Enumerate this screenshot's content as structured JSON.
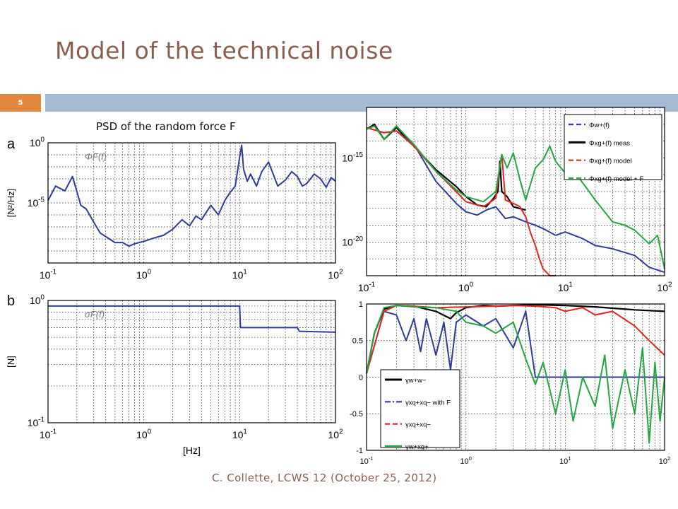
{
  "slide": {
    "title": "Model of the technical noise",
    "number": "5",
    "psd_label": "PSD of the random force F",
    "footer": "C. Collette, LCWS 12 (October 25, 2012)"
  },
  "colors": {
    "title": "#8a5e4e",
    "accent_orange": "#e2873d",
    "accent_blue": "#a3bcd4",
    "blue": "#2e3b9c",
    "black": "#000000",
    "red": "#e8231f",
    "green": "#22a640"
  },
  "chart_data": [
    {
      "id": "a",
      "type": "line",
      "panel_label": "a",
      "ylabel": "[N²/Hz]",
      "annotation": "ΦF(f)",
      "xscale": "log",
      "yscale": "log",
      "xlim": [
        0.1,
        100
      ],
      "ylim": [
        1e-10,
        1
      ],
      "xticks": [
        "10-1",
        "100",
        "101",
        "102"
      ],
      "yticks": [
        "100",
        "10-5"
      ],
      "grid": true,
      "series": [
        {
          "color": "blue",
          "x": [
            0.1,
            0.12,
            0.15,
            0.18,
            0.22,
            0.25,
            0.3,
            0.35,
            0.4,
            0.5,
            0.6,
            0.7,
            0.8,
            1,
            1.3,
            1.6,
            2,
            2.5,
            3,
            3.5,
            4,
            5,
            6,
            7,
            8,
            9,
            10,
            10.5,
            11,
            12,
            13,
            15,
            17,
            20,
            25,
            30,
            35,
            40,
            45,
            50,
            60,
            70,
            80,
            90,
            100
          ],
          "y": [
            -4.8,
            -3.6,
            -4.0,
            -2.8,
            -5.2,
            -5.5,
            -6.6,
            -7.5,
            -7.8,
            -8.3,
            -8.3,
            -8.6,
            -8.4,
            -8.2,
            -7.9,
            -7.7,
            -7.2,
            -6.4,
            -6.9,
            -6.1,
            -6.4,
            -5.2,
            -6.0,
            -4.8,
            -4.1,
            -3.6,
            -1.2,
            -0.2,
            -2.2,
            -3.2,
            -2.6,
            -3.6,
            -2.4,
            -1.6,
            -3.6,
            -3.1,
            -2.4,
            -2.8,
            -3.6,
            -3.4,
            -2.6,
            -3.0,
            -3.7,
            -2.9,
            -3.2
          ]
        }
      ]
    },
    {
      "id": "b",
      "type": "line",
      "panel_label": "b",
      "ylabel": "[N]",
      "xlabel": "[Hz]",
      "annotation": "σF(f)",
      "xscale": "log",
      "yscale": "log",
      "xlim": [
        0.1,
        100
      ],
      "ylim": [
        0.1,
        1
      ],
      "xticks": [
        "10-1",
        "100",
        "101",
        "102"
      ],
      "yticks": [
        "100",
        "10-1"
      ],
      "grid": true,
      "series": [
        {
          "color": "blue",
          "x": [
            0.1,
            10,
            10.2,
            40,
            42,
            100
          ],
          "y": [
            0.9,
            0.9,
            0.6,
            0.6,
            0.56,
            0.55
          ]
        }
      ]
    },
    {
      "id": "c",
      "type": "line",
      "xscale": "log",
      "yscale": "log",
      "xlim": [
        0.1,
        100
      ],
      "ylim": [
        1e-22,
        1e-12
      ],
      "xticks": [
        "10-1",
        "100",
        "101",
        "102"
      ],
      "yticks": [
        "10-15",
        "10-20"
      ],
      "grid": true,
      "legend": {
        "position": "top-right",
        "entries": [
          {
            "label": "Φw+(f)",
            "color": "blue",
            "dash": "dash"
          },
          {
            "label": "Φxg+(f) meas",
            "color": "black",
            "dash": "solid"
          },
          {
            "label": "Φxg+(f) model",
            "color": "red",
            "dash": "dash"
          },
          {
            "label": "Φxg+(f) model + F",
            "color": "green",
            "dash": "dash"
          }
        ]
      },
      "series": [
        {
          "color": "black",
          "x": [
            0.1,
            0.12,
            0.15,
            0.2,
            0.3,
            0.5,
            0.8,
            1,
            1.3,
            1.6,
            1.9,
            2.1,
            2.2,
            2.3,
            2.6,
            3,
            4
          ],
          "y": [
            -13.3,
            -13.0,
            -13.9,
            -13.2,
            -14.3,
            -15.7,
            -16.7,
            -17.3,
            -17.8,
            -17.9,
            -17.4,
            -17.0,
            -15.2,
            -17.0,
            -17.3,
            -17.9,
            -18.1
          ]
        },
        {
          "color": "blue",
          "x": [
            0.1,
            0.15,
            0.2,
            0.3,
            0.5,
            0.8,
            1,
            1.3,
            1.6,
            2,
            2.5,
            3,
            4,
            5,
            6,
            8,
            10,
            15,
            20,
            30,
            50,
            70,
            100
          ],
          "y": [
            -13.2,
            -13.5,
            -13.4,
            -14.2,
            -16.4,
            -17.7,
            -18.2,
            -18.4,
            -18.1,
            -17.9,
            -18.6,
            -18.5,
            -18.8,
            -19.0,
            -19.2,
            -19.6,
            -19.4,
            -19.8,
            -20.2,
            -20.4,
            -20.8,
            -21.5,
            -21.8
          ]
        },
        {
          "color": "red",
          "x": [
            0.1,
            0.15,
            0.2,
            0.3,
            0.5,
            0.8,
            1,
            1.5,
            2,
            2.2,
            2.3,
            2.5,
            3,
            3.5,
            4,
            4.5,
            5,
            5.5,
            6,
            7,
            8
          ],
          "y": [
            -13.2,
            -13.5,
            -13.4,
            -14.3,
            -15.8,
            -17.0,
            -17.6,
            -17.9,
            -17.4,
            -15.5,
            -14.8,
            -17.5,
            -17.7,
            -17.9,
            -18.5,
            -19.5,
            -20.2,
            -21.0,
            -21.6,
            -22.0,
            -22.0
          ]
        },
        {
          "color": "green",
          "x": [
            0.1,
            0.12,
            0.15,
            0.2,
            0.3,
            0.5,
            0.8,
            1,
            1.5,
            2,
            2.3,
            2.6,
            3,
            3.5,
            4,
            5,
            6,
            7,
            8,
            10,
            13,
            16,
            20,
            30,
            40,
            50,
            70,
            85,
            100
          ],
          "y": [
            -13.3,
            -13.1,
            -13.9,
            -13.1,
            -14.2,
            -15.8,
            -16.9,
            -17.3,
            -17.6,
            -17.0,
            -14.8,
            -15.6,
            -14.7,
            -16.3,
            -17.5,
            -15.6,
            -15.1,
            -14.3,
            -15.2,
            -15.9,
            -16.0,
            -16.7,
            -17.5,
            -18.8,
            -19.0,
            -19.3,
            -20.1,
            -19.6,
            -21.6
          ]
        }
      ]
    },
    {
      "id": "d",
      "type": "line",
      "xscale": "log",
      "xlim": [
        0.1,
        100
      ],
      "ylim": [
        -1,
        1
      ],
      "xticks": [
        "10-1",
        "100",
        "101",
        "102"
      ],
      "yticks": [
        "1",
        "0.5",
        "0",
        "-0.5",
        "-1"
      ],
      "grid": true,
      "legend": {
        "position": "bottom-left",
        "entries": [
          {
            "label": "γw+w−",
            "color": "black",
            "dash": "solid"
          },
          {
            "label": "γxq+xq− with F",
            "color": "blue",
            "dash": "dashdot"
          },
          {
            "label": "γxq+xq−",
            "color": "red",
            "dash": "dash"
          },
          {
            "label": "γw+xg+",
            "color": "green",
            "dash": "solid"
          }
        ]
      },
      "series": [
        {
          "color": "black",
          "x": [
            0.1,
            0.12,
            0.15,
            0.2,
            0.3,
            0.5,
            0.7,
            0.8,
            1,
            1.5,
            2,
            3,
            5,
            10,
            20,
            50,
            100
          ],
          "y": [
            0.05,
            0.6,
            0.93,
            0.98,
            0.97,
            0.9,
            0.8,
            0.88,
            0.95,
            0.98,
            0.97,
            0.98,
            0.99,
            0.98,
            0.96,
            0.92,
            0.9
          ]
        },
        {
          "color": "blue",
          "x": [
            0.1,
            0.15,
            0.2,
            0.25,
            0.3,
            0.35,
            0.4,
            0.5,
            0.6,
            0.7,
            0.8,
            1,
            1.5,
            2,
            3,
            4,
            5,
            7,
            10,
            30,
            100
          ],
          "y": [
            0.05,
            0.9,
            0.85,
            0.5,
            0.8,
            0.35,
            0.8,
            0.3,
            0.75,
            0.1,
            0.75,
            0.85,
            0.7,
            0.8,
            0.4,
            0.9,
            0.0,
            0.0,
            0.0,
            0.0,
            0.0
          ]
        },
        {
          "color": "red",
          "x": [
            0.1,
            0.15,
            0.2,
            0.3,
            0.5,
            1,
            2,
            3,
            5,
            8,
            10,
            15,
            20,
            30,
            50,
            70,
            100
          ],
          "y": [
            0.05,
            0.9,
            0.98,
            0.97,
            0.95,
            0.96,
            0.97,
            0.98,
            0.97,
            0.95,
            0.9,
            0.95,
            0.85,
            0.9,
            0.7,
            0.5,
            0.3
          ]
        },
        {
          "color": "green",
          "x": [
            0.1,
            0.12,
            0.15,
            0.2,
            0.3,
            0.5,
            0.8,
            1,
            1.5,
            2,
            3,
            4,
            5,
            6,
            8,
            10,
            12,
            15,
            20,
            25,
            30,
            40,
            50,
            60,
            70,
            80,
            90,
            100
          ],
          "y": [
            0.05,
            0.6,
            0.95,
            0.98,
            0.96,
            0.95,
            0.9,
            0.75,
            0.7,
            0.6,
            0.75,
            0.25,
            -0.1,
            0.2,
            -0.5,
            0.1,
            -0.6,
            0.0,
            -0.4,
            0.3,
            -0.7,
            0.1,
            -0.5,
            0.4,
            -0.9,
            0.2,
            -0.6,
            0.0
          ]
        }
      ]
    }
  ]
}
